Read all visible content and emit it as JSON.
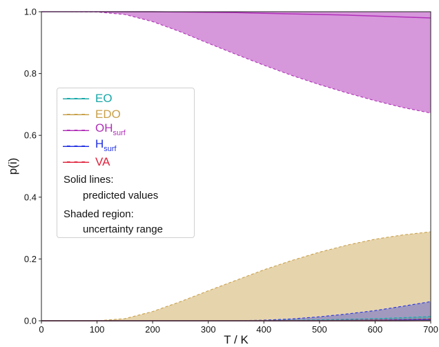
{
  "chart_data": {
    "type": "area",
    "xlabel": "T / K",
    "ylabel": "p(i)",
    "xlim": [
      0,
      700
    ],
    "ylim": [
      0,
      1.0
    ],
    "x_ticks": [
      0,
      100,
      200,
      300,
      400,
      500,
      600,
      700
    ],
    "y_ticks": [
      0.0,
      0.2,
      0.4,
      0.6,
      0.8,
      1.0
    ],
    "x_tick_labels": [
      "0",
      "100",
      "200",
      "300",
      "400",
      "500",
      "600",
      "700"
    ],
    "y_tick_labels": [
      "0.0",
      "0.2",
      "0.4",
      "0.6",
      "0.8",
      "1.0"
    ],
    "grid": false,
    "legend_position": "center-left",
    "x": [
      0,
      50,
      100,
      150,
      200,
      250,
      300,
      350,
      400,
      450,
      500,
      550,
      600,
      650,
      700
    ],
    "series": [
      {
        "name": "EO",
        "label": "EO",
        "sub": "",
        "color": "#17a7a7",
        "predicted": [
          0,
          0,
          0,
          0,
          0,
          0,
          0,
          0,
          0,
          0,
          0,
          0,
          0,
          0,
          0.001
        ],
        "lower": [
          0,
          0,
          0,
          0,
          0,
          0,
          0,
          0,
          0,
          0,
          0,
          0,
          0,
          0,
          0
        ],
        "upper": [
          0,
          0,
          0,
          0,
          0,
          0,
          0,
          0,
          0.001,
          0.002,
          0.003,
          0.005,
          0.007,
          0.01,
          0.014
        ]
      },
      {
        "name": "EDO",
        "label": "EDO",
        "sub": "",
        "color": "#c8a04a",
        "predicted": [
          0,
          0,
          0,
          0,
          0,
          0,
          0,
          0,
          0,
          0,
          0,
          0,
          0,
          0.001,
          0.002
        ],
        "lower": [
          0,
          0,
          0,
          0,
          0,
          0,
          0,
          0,
          0,
          0,
          0,
          0,
          0,
          0,
          0
        ],
        "upper": [
          0,
          0,
          0,
          0.007,
          0.03,
          0.062,
          0.097,
          0.131,
          0.165,
          0.195,
          0.222,
          0.245,
          0.264,
          0.278,
          0.288
        ]
      },
      {
        "name": "OHsurf",
        "label": "OH",
        "sub": "surf",
        "color": "#b02fb8",
        "predicted": [
          1.0,
          1.0,
          1.0,
          1.0,
          1.0,
          0.999,
          0.998,
          0.997,
          0.995,
          0.993,
          0.991,
          0.989,
          0.986,
          0.983,
          0.98
        ],
        "lower": [
          1.0,
          1.0,
          0.999,
          0.991,
          0.968,
          0.935,
          0.898,
          0.862,
          0.827,
          0.794,
          0.764,
          0.737,
          0.712,
          0.69,
          0.672
        ],
        "upper": [
          1.0,
          1.0,
          1.0,
          1.0,
          1.0,
          1.0,
          1.0,
          1.0,
          1.0,
          1.0,
          1.0,
          1.0,
          1.0,
          1.0,
          1.0
        ]
      },
      {
        "name": "Hsurf",
        "label": "H",
        "sub": "surf",
        "color": "#1f2fe0",
        "predicted": [
          0,
          0,
          0,
          0,
          0,
          0,
          0,
          0,
          0,
          0,
          0,
          0.001,
          0.001,
          0.002,
          0.003
        ],
        "lower": [
          0,
          0,
          0,
          0,
          0,
          0,
          0,
          0,
          0,
          0,
          0,
          0,
          0,
          0,
          0
        ],
        "upper": [
          0,
          0,
          0,
          0,
          0,
          0,
          0,
          0,
          0.002,
          0.006,
          0.013,
          0.022,
          0.033,
          0.047,
          0.062
        ]
      },
      {
        "name": "VA",
        "label": "VA",
        "sub": "",
        "color": "#e0223c",
        "predicted": [
          0,
          0,
          0,
          0,
          0,
          0,
          0,
          0,
          0,
          0,
          0,
          0,
          0,
          0,
          0
        ],
        "lower": [
          0,
          0,
          0,
          0,
          0,
          0,
          0,
          0,
          0,
          0,
          0,
          0,
          0,
          0,
          0
        ],
        "upper": [
          0,
          0,
          0,
          0,
          0,
          0,
          0,
          0,
          0,
          0,
          0.001,
          0.002,
          0.003,
          0.004,
          0.006
        ]
      }
    ],
    "annotations": {
      "solid_title": "Solid lines:",
      "solid_desc": "predicted values",
      "shaded_title": "Shaded region:",
      "shaded_desc": "uncertainty range"
    }
  }
}
